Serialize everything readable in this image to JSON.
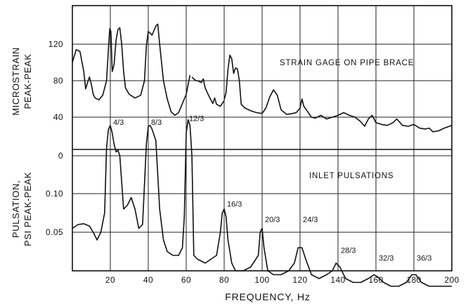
{
  "chart_data": {
    "type": "line",
    "xlabel": "FREQUENCY, Hz",
    "x_ticks": [
      "20",
      "40",
      "60",
      "80",
      "100",
      "120",
      "140",
      "160",
      "180",
      "200"
    ],
    "xlim": [
      0,
      200
    ],
    "grid": true,
    "top_panel": {
      "ylabel_lines": [
        "MICROSTRAIN",
        "PEAK-PEAK"
      ],
      "y_ticks": [
        "120",
        "80",
        "40"
      ],
      "ylim": [
        0,
        150
      ],
      "annotation": "STRAIN GAGE ON PIPE BRACE",
      "series": [
        {
          "values": [
            [
              0,
              100
            ],
            [
              2,
              114
            ],
            [
              4,
              112
            ],
            [
              6,
              90
            ],
            [
              7,
              71
            ],
            [
              8,
              78
            ],
            [
              9,
              84
            ],
            [
              10,
              76
            ],
            [
              11,
              65
            ],
            [
              12,
              61
            ],
            [
              14,
              59
            ],
            [
              16,
              64
            ],
            [
              18,
              80
            ],
            [
              19,
              115
            ],
            [
              19.7,
              137
            ],
            [
              20.3,
              134
            ],
            [
              21,
              90
            ],
            [
              22,
              98
            ],
            [
              23,
              124
            ],
            [
              24,
              136
            ],
            [
              25,
              138
            ],
            [
              26,
              120
            ],
            [
              27,
              90
            ],
            [
              28,
              72
            ],
            [
              30,
              65
            ],
            [
              33,
              61
            ],
            [
              36,
              64
            ],
            [
              38,
              80
            ],
            [
              39,
              118
            ],
            [
              40,
              134
            ],
            [
              42,
              130
            ],
            [
              44,
              140
            ],
            [
              45,
              142
            ],
            [
              46,
              120
            ],
            [
              47,
              100
            ],
            [
              48,
              80
            ],
            [
              50,
              60
            ],
            [
              52,
              46
            ],
            [
              54,
              42
            ],
            [
              56,
              45
            ],
            [
              58,
              55
            ],
            [
              60,
              65
            ],
            [
              62,
              86
            ]
          ]
        },
        {
          "values": [
            [
              63,
              84
            ],
            [
              65,
              80
            ],
            [
              66,
              80
            ],
            [
              68,
              78
            ],
            [
              69,
              82
            ],
            [
              70,
              72
            ],
            [
              72,
              63
            ],
            [
              74,
              55
            ],
            [
              75,
              61
            ],
            [
              76,
              54
            ],
            [
              78,
              52
            ],
            [
              80,
              58
            ]
          ]
        },
        {
          "values": [
            [
              80,
              59
            ],
            [
              81,
              67
            ],
            [
              82,
              92
            ],
            [
              83,
              108
            ],
            [
              84,
              104
            ],
            [
              85,
              88
            ],
            [
              86,
              94
            ],
            [
              87,
              93
            ],
            [
              88,
              80
            ],
            [
              89,
              54
            ],
            [
              91,
              50
            ],
            [
              94,
              47
            ],
            [
              97,
              45
            ],
            [
              100,
              44
            ],
            [
              102,
              50
            ],
            [
              104,
              62
            ],
            [
              106,
              70
            ],
            [
              108,
              64
            ],
            [
              110,
              48
            ],
            [
              113,
              43
            ],
            [
              116,
              44
            ],
            [
              118,
              45
            ],
            [
              120,
              50
            ],
            [
              121,
              60
            ],
            [
              122,
              52
            ],
            [
              124,
              46
            ],
            [
              126,
              40
            ],
            [
              128,
              39
            ],
            [
              131,
              42
            ],
            [
              134,
              38
            ],
            [
              137,
              40
            ],
            [
              140,
              42
            ],
            [
              143,
              45
            ],
            [
              146,
              42
            ],
            [
              149,
              40
            ],
            [
              152,
              35
            ],
            [
              154,
              30
            ],
            [
              156,
              38
            ],
            [
              158,
              42
            ],
            [
              160,
              34
            ],
            [
              163,
              32
            ],
            [
              166,
              31
            ],
            [
              169,
              34
            ],
            [
              171,
              38
            ],
            [
              174,
              31
            ],
            [
              177,
              30
            ],
            [
              180,
              32
            ],
            [
              183,
              28
            ],
            [
              186,
              27
            ],
            [
              188,
              28
            ],
            [
              190,
              24
            ],
            [
              193,
              25
            ],
            [
              196,
              28
            ],
            [
              200,
              31
            ]
          ]
        }
      ]
    },
    "bottom_panel": {
      "ylabel_lines": [
        "PULSATION,",
        "PSI PEAK-PEAK"
      ],
      "y_ticks": [
        "0",
        "0.10",
        "0.05"
      ],
      "ylim": [
        -0.04,
        0.2
      ],
      "annotation": "INLET PULSATIONS",
      "peak_labels": [
        {
          "text": "4/3",
          "x": 20,
          "y": 0.185
        },
        {
          "text": "8/3",
          "x": 40,
          "y": 0.185
        },
        {
          "text": "12/3",
          "x": 60,
          "y": 0.195
        },
        {
          "text": "16/3",
          "x": 80,
          "y": 0.085
        },
        {
          "text": "20/3",
          "x": 100,
          "y": 0.065
        },
        {
          "text": "24/3",
          "x": 120,
          "y": 0.065
        },
        {
          "text": "28/3",
          "x": 140,
          "y": 0.025
        },
        {
          "text": "32/3",
          "x": 160,
          "y": 0.015
        },
        {
          "text": "36/3",
          "x": 180,
          "y": 0.015
        }
      ],
      "series": [
        {
          "values": [
            [
              0,
              0.055
            ],
            [
              3,
              0.06
            ],
            [
              6,
              0.061
            ],
            [
              9,
              0.058
            ],
            [
              11,
              0.05
            ],
            [
              13,
              0.04
            ],
            [
              15,
              0.05
            ],
            [
              17,
              0.075
            ],
            [
              18,
              0.12
            ],
            [
              19,
              0.17
            ],
            [
              20,
              0.18
            ],
            [
              21,
              0.16
            ],
            [
              22,
              0.13
            ],
            [
              23,
              0.11
            ],
            [
              24,
              0.115
            ],
            [
              25,
              0.1
            ],
            [
              27,
              0.08
            ],
            [
              29,
              0.085
            ],
            [
              31,
              0.095
            ],
            [
              33,
              0.08
            ],
            [
              35,
              0.055
            ],
            [
              37,
              0.06
            ],
            [
              39,
              0.13
            ],
            [
              40,
              0.178
            ],
            [
              41,
              0.18
            ],
            [
              42,
              0.17
            ],
            [
              44,
              0.14
            ],
            [
              46,
              0.08
            ],
            [
              48,
              0.04
            ],
            [
              50,
              0.025
            ],
            [
              53,
              0.02
            ],
            [
              56,
              0.02
            ],
            [
              58,
              0.03
            ],
            [
              59,
              0.07
            ],
            [
              60,
              0.16
            ],
            [
              61,
              0.195
            ],
            [
              62,
              0.18
            ],
            [
              63,
              0.1
            ],
            [
              64,
              0.02
            ],
            [
              66,
              0.015
            ],
            [
              70,
              0.01
            ],
            [
              73,
              0.015
            ],
            [
              76,
              0.02
            ],
            [
              78,
              0.05
            ],
            [
              79,
              0.075
            ],
            [
              80,
              0.08
            ],
            [
              81,
              0.07
            ],
            [
              82,
              0.04
            ],
            [
              84,
              0.01
            ],
            [
              86,
              0.0
            ],
            [
              90,
              0.0
            ],
            [
              94,
              0.005
            ],
            [
              98,
              0.02
            ],
            [
              99,
              0.05
            ],
            [
              100,
              0.055
            ],
            [
              101,
              0.03
            ],
            [
              103,
              0.0
            ],
            [
              106,
              -0.005
            ],
            [
              110,
              -0.005
            ],
            [
              114,
              0.0
            ],
            [
              117,
              0.01
            ],
            [
              119,
              0.03
            ],
            [
              121,
              0.03
            ],
            [
              123,
              0.015
            ],
            [
              126,
              -0.005
            ],
            [
              130,
              -0.01
            ],
            [
              134,
              -0.005
            ],
            [
              137,
              0.0
            ],
            [
              139,
              0.01
            ],
            [
              141,
              0.005
            ],
            [
              144,
              -0.01
            ],
            [
              148,
              -0.015
            ],
            [
              152,
              -0.015
            ],
            [
              156,
              -0.01
            ],
            [
              159,
              -0.005
            ],
            [
              161,
              -0.008
            ],
            [
              164,
              -0.015
            ],
            [
              168,
              -0.02
            ],
            [
              172,
              -0.02
            ],
            [
              176,
              -0.015
            ],
            [
              179,
              -0.005
            ],
            [
              181,
              -0.005
            ],
            [
              184,
              -0.015
            ],
            [
              188,
              -0.02
            ],
            [
              192,
              -0.02
            ],
            [
              196,
              -0.02
            ],
            [
              200,
              -0.02
            ]
          ]
        }
      ]
    }
  }
}
